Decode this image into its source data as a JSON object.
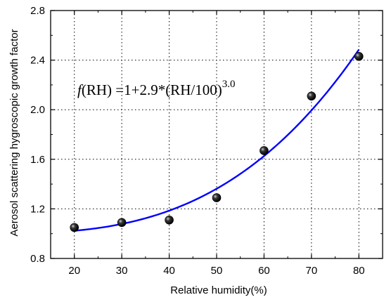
{
  "chart_data": {
    "type": "scatter",
    "title": "",
    "xlabel": "Relative humidity(%)",
    "ylabel": "Aerosol scattering hygroscopic growth factor",
    "xlim": [
      15,
      85
    ],
    "ylim": [
      0.8,
      2.8
    ],
    "x_ticks": [
      "20",
      "30",
      "40",
      "50",
      "60",
      "70",
      "80"
    ],
    "y_ticks": [
      "0.8",
      "1.2",
      "1.6",
      "2.0",
      "2.4",
      "2.8"
    ],
    "grid": "dotted",
    "series": [
      {
        "kind": "points",
        "marker": "black sphere",
        "x": [
          20,
          30,
          40,
          50,
          60,
          70,
          80
        ],
        "y": [
          1.05,
          1.09,
          1.11,
          1.29,
          1.67,
          2.11,
          2.43
        ]
      },
      {
        "kind": "fit-line",
        "color": "#0000ff",
        "formula": {
          "a": 1,
          "b": 2.9,
          "c": 3.0
        },
        "x_range": [
          20,
          80
        ]
      }
    ],
    "annotation": {
      "f": "f",
      "lhs": "(RH) =1+2.9*(RH/100)",
      "exponent": "3.0"
    }
  }
}
